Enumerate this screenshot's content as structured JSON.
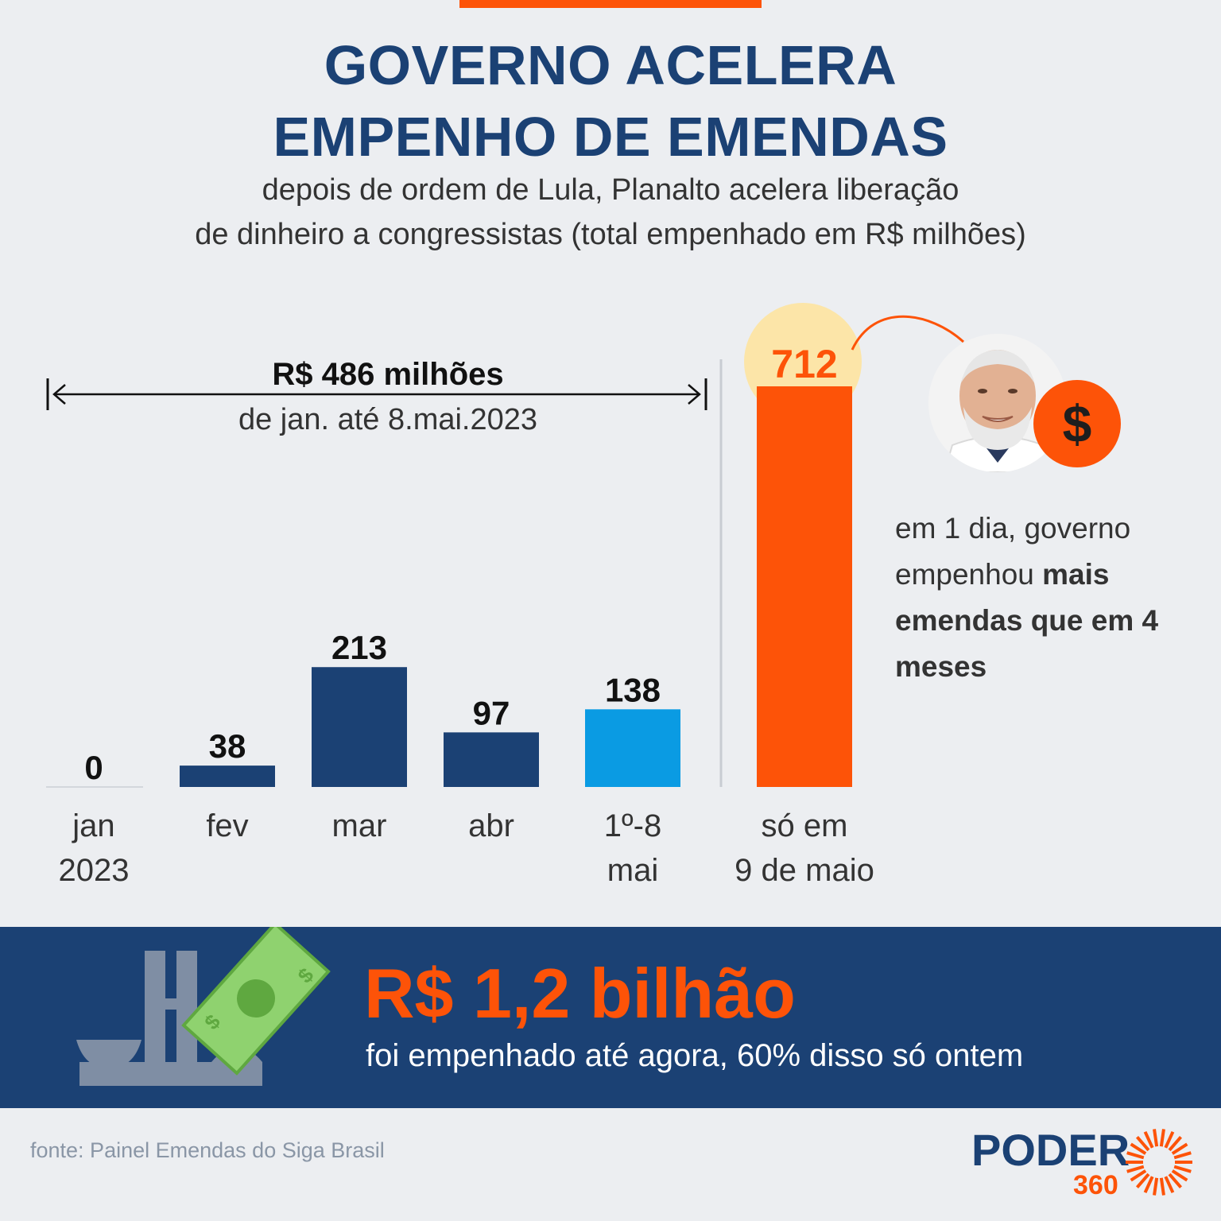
{
  "title": {
    "line1": "GOVERNO ACELERA",
    "line2": "EMPENHO DE EMENDAS"
  },
  "subtitle": {
    "line1": "depois de ordem de Lula, Planalto acelera liberação",
    "line2": "de dinheiro a congressistas (total empenhado em R$ milhões)"
  },
  "colors": {
    "navy": "#1b4174",
    "light_blue": "#0a9be3",
    "orange": "#fd5308",
    "highlight": "#fce5a8",
    "background": "#eceef1"
  },
  "chart_data": {
    "type": "bar",
    "categories": [
      {
        "line1": "jan",
        "line2": "2023"
      },
      {
        "line1": "fev",
        "line2": ""
      },
      {
        "line1": "mar",
        "line2": ""
      },
      {
        "line1": "abr",
        "line2": ""
      },
      {
        "line1": "1º-8",
        "line2": "mai"
      },
      {
        "line1": "só em",
        "line2": "9 de maio"
      }
    ],
    "values": [
      0,
      38,
      213,
      97,
      138,
      712
    ],
    "bar_colors": [
      "#1b4174",
      "#1b4174",
      "#1b4174",
      "#1b4174",
      "#0a9be3",
      "#fd5308"
    ],
    "ylim": [
      0,
      712
    ],
    "range_annotation": {
      "value": "R$ 486 milhões",
      "period": "de jan. até 8.mai.2023"
    }
  },
  "note": {
    "text": "em 1 dia, governo empenhou",
    "bold": "mais emendas que em 4 meses"
  },
  "banner": {
    "headline": "R$ 1,2 bilhão",
    "subline": "foi empenhado até agora, 60% disso só ontem"
  },
  "source": "fonte: Painel Emendas do Siga Brasil",
  "logo": {
    "word": "PODER",
    "number": "360"
  },
  "icons": {
    "portrait": "person-portrait-icon",
    "dollar": "dollar-icon",
    "congress": "congress-building-icon",
    "banknote": "banknote-icon"
  }
}
